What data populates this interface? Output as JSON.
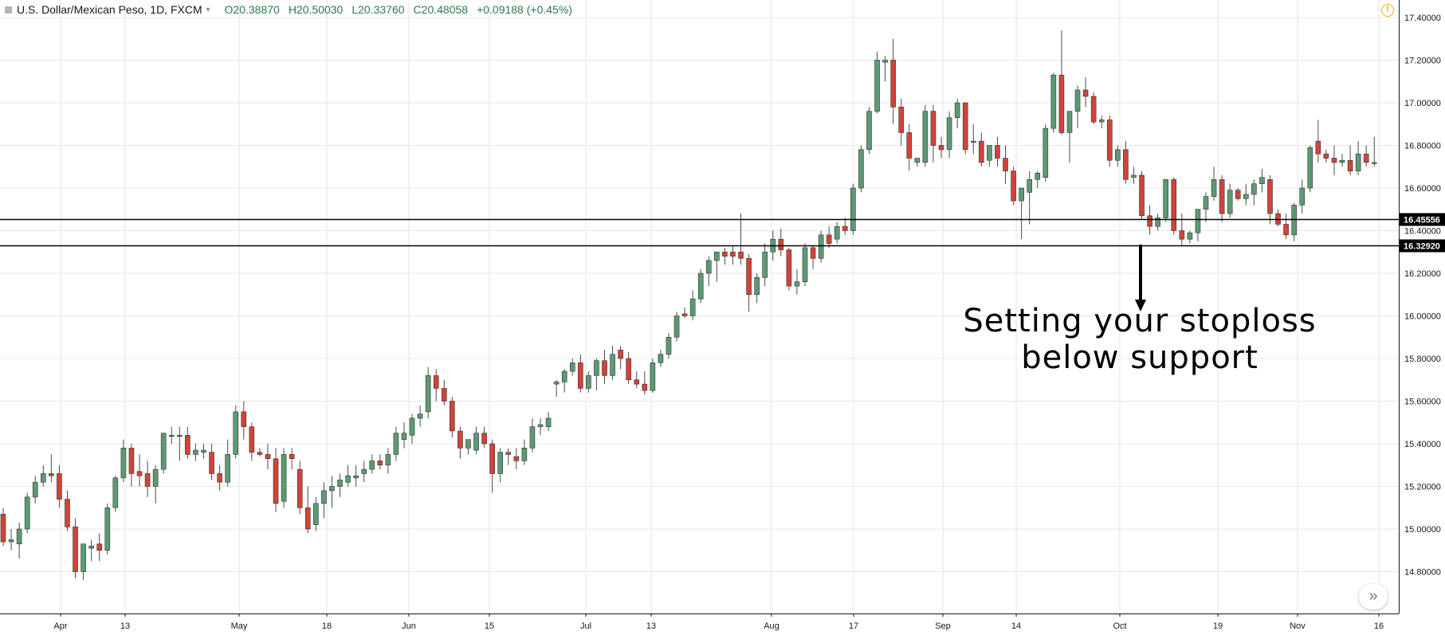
{
  "header": {
    "title": "U.S. Dollar/Mexican Peso, 1D, FXCM",
    "open": "O20.38870",
    "high": "H20.50030",
    "low": "L20.33760",
    "close": "C20.48058",
    "change": "+0.09188 (+0.45%)"
  },
  "annotation": {
    "line1": "Setting your stoploss",
    "line2": "below support"
  },
  "icons": {
    "alert": "alert-icon",
    "scroll": "double-chevron-right-icon"
  },
  "colors": {
    "up": "#5b9b74",
    "down": "#d04437",
    "grid": "#e6e6e6",
    "line": "#000000"
  },
  "chart_data": {
    "type": "candlestick",
    "title": "U.S. Dollar/Mexican Peso, 1D, FXCM",
    "ylim": [
      14.69,
      17.45
    ],
    "y_ticks": [
      "17.40000",
      "17.20000",
      "17.00000",
      "16.80000",
      "16.60000",
      "16.40000",
      "16.20000",
      "16.00000",
      "15.80000",
      "15.60000",
      "15.40000",
      "15.20000",
      "15.00000",
      "14.80000"
    ],
    "x_ticks": [
      "Apr",
      "13",
      "May",
      "18",
      "Jun",
      "15",
      "Jul",
      "13",
      "Aug",
      "17",
      "Sep",
      "14",
      "Oct",
      "19",
      "Nov",
      "16"
    ],
    "horizontal_lines": [
      {
        "value": 16.45556,
        "label": "16.45556"
      },
      {
        "value": 16.3292,
        "label": "16.32920"
      }
    ],
    "grid": true,
    "candles": [
      [
        15.07,
        15.1,
        14.92,
        14.94
      ],
      [
        14.94,
        15.0,
        14.9,
        14.95
      ],
      [
        14.93,
        15.03,
        14.86,
        15.0
      ],
      [
        15.0,
        15.17,
        14.98,
        15.15
      ],
      [
        15.15,
        15.25,
        15.12,
        15.22
      ],
      [
        15.22,
        15.3,
        15.2,
        15.26
      ],
      [
        15.26,
        15.35,
        15.22,
        15.25
      ],
      [
        15.26,
        15.3,
        15.1,
        15.14
      ],
      [
        15.14,
        15.18,
        14.99,
        15.01
      ],
      [
        15.01,
        15.05,
        14.77,
        14.8
      ],
      [
        14.8,
        14.93,
        14.76,
        14.93
      ],
      [
        14.91,
        14.95,
        14.85,
        14.92
      ],
      [
        14.93,
        14.98,
        14.85,
        14.9
      ],
      [
        14.9,
        15.12,
        14.88,
        15.1
      ],
      [
        15.1,
        15.25,
        15.08,
        15.24
      ],
      [
        15.24,
        15.42,
        15.22,
        15.38
      ],
      [
        15.38,
        15.4,
        15.2,
        15.26
      ],
      [
        15.27,
        15.35,
        15.2,
        15.25
      ],
      [
        15.26,
        15.32,
        15.15,
        15.2
      ],
      [
        15.2,
        15.3,
        15.12,
        15.28
      ],
      [
        15.28,
        15.45,
        15.26,
        15.45
      ],
      [
        15.44,
        15.48,
        15.4,
        15.44
      ],
      [
        15.44,
        15.48,
        15.32,
        15.44
      ],
      [
        15.44,
        15.48,
        15.33,
        15.35
      ],
      [
        15.35,
        15.4,
        15.32,
        15.37
      ],
      [
        15.36,
        15.4,
        15.33,
        15.37
      ],
      [
        15.36,
        15.4,
        15.23,
        15.26
      ],
      [
        15.26,
        15.3,
        15.18,
        15.22
      ],
      [
        15.22,
        15.42,
        15.2,
        15.35
      ],
      [
        15.35,
        15.58,
        15.33,
        15.55
      ],
      [
        15.55,
        15.6,
        15.42,
        15.48
      ],
      [
        15.48,
        15.5,
        15.32,
        15.36
      ],
      [
        15.36,
        15.38,
        15.34,
        15.35
      ],
      [
        15.35,
        15.4,
        15.28,
        15.33
      ],
      [
        15.33,
        15.38,
        15.08,
        15.12
      ],
      [
        15.13,
        15.38,
        15.1,
        15.35
      ],
      [
        15.35,
        15.38,
        15.28,
        15.33
      ],
      [
        15.28,
        15.32,
        15.07,
        15.1
      ],
      [
        15.1,
        15.2,
        14.98,
        15.0
      ],
      [
        15.02,
        15.15,
        14.99,
        15.12
      ],
      [
        15.12,
        15.22,
        15.05,
        15.18
      ],
      [
        15.18,
        15.25,
        15.1,
        15.2
      ],
      [
        15.2,
        15.26,
        15.15,
        15.23
      ],
      [
        15.22,
        15.3,
        15.2,
        15.25
      ],
      [
        15.24,
        15.3,
        15.2,
        15.25
      ],
      [
        15.26,
        15.32,
        15.22,
        15.28
      ],
      [
        15.28,
        15.35,
        15.26,
        15.32
      ],
      [
        15.32,
        15.35,
        15.28,
        15.3
      ],
      [
        15.3,
        15.38,
        15.26,
        15.35
      ],
      [
        15.35,
        15.48,
        15.32,
        15.45
      ],
      [
        15.42,
        15.5,
        15.38,
        15.45
      ],
      [
        15.44,
        15.54,
        15.4,
        15.52
      ],
      [
        15.52,
        15.58,
        15.48,
        15.54
      ],
      [
        15.55,
        15.76,
        15.52,
        15.72
      ],
      [
        15.72,
        15.75,
        15.6,
        15.66
      ],
      [
        15.66,
        15.7,
        15.58,
        15.6
      ],
      [
        15.6,
        15.62,
        15.43,
        15.46
      ],
      [
        15.46,
        15.48,
        15.33,
        15.38
      ],
      [
        15.38,
        15.42,
        15.35,
        15.42
      ],
      [
        15.37,
        15.48,
        15.35,
        15.45
      ],
      [
        15.45,
        15.48,
        15.38,
        15.4
      ],
      [
        15.4,
        15.42,
        15.17,
        15.26
      ],
      [
        15.26,
        15.38,
        15.22,
        15.36
      ],
      [
        15.36,
        15.38,
        15.3,
        15.35
      ],
      [
        15.34,
        15.38,
        15.28,
        15.32
      ],
      [
        15.32,
        15.42,
        15.3,
        15.38
      ],
      [
        15.38,
        15.52,
        15.36,
        15.48
      ],
      [
        15.48,
        15.52,
        15.44,
        15.49
      ],
      [
        15.48,
        15.55,
        15.46,
        15.52
      ],
      [
        15.68,
        15.7,
        15.62,
        15.69
      ],
      [
        15.69,
        15.75,
        15.64,
        15.74
      ],
      [
        15.74,
        15.8,
        15.72,
        15.78
      ],
      [
        15.78,
        15.82,
        15.64,
        15.66
      ],
      [
        15.66,
        15.74,
        15.64,
        15.72
      ],
      [
        15.72,
        15.8,
        15.65,
        15.79
      ],
      [
        15.79,
        15.84,
        15.68,
        15.72
      ],
      [
        15.72,
        15.86,
        15.7,
        15.82
      ],
      [
        15.84,
        15.86,
        15.75,
        15.8
      ],
      [
        15.8,
        15.83,
        15.68,
        15.7
      ],
      [
        15.7,
        15.74,
        15.66,
        15.68
      ],
      [
        15.68,
        15.74,
        15.63,
        15.65
      ],
      [
        15.65,
        15.8,
        15.64,
        15.78
      ],
      [
        15.78,
        15.84,
        15.76,
        15.82
      ],
      [
        15.82,
        15.92,
        15.8,
        15.9
      ],
      [
        15.9,
        16.02,
        15.88,
        16.0
      ],
      [
        16.01,
        16.04,
        15.99,
        16.0
      ],
      [
        16.0,
        16.12,
        15.98,
        16.08
      ],
      [
        16.08,
        16.22,
        16.06,
        16.2
      ],
      [
        16.2,
        16.28,
        16.14,
        16.26
      ],
      [
        16.26,
        16.3,
        16.16,
        16.3
      ],
      [
        16.3,
        16.32,
        16.24,
        16.28
      ],
      [
        16.3,
        16.33,
        16.24,
        16.28
      ],
      [
        16.3,
        16.48,
        16.24,
        16.27
      ],
      [
        16.27,
        16.29,
        16.02,
        16.1
      ],
      [
        16.1,
        16.2,
        16.06,
        16.18
      ],
      [
        16.18,
        16.34,
        16.14,
        16.3
      ],
      [
        16.3,
        16.4,
        16.26,
        16.36
      ],
      [
        16.36,
        16.41,
        16.28,
        16.31
      ],
      [
        16.31,
        16.32,
        16.12,
        16.14
      ],
      [
        16.14,
        16.22,
        16.1,
        16.16
      ],
      [
        16.16,
        16.34,
        16.14,
        16.32
      ],
      [
        16.32,
        16.33,
        16.22,
        16.27
      ],
      [
        16.27,
        16.4,
        16.25,
        16.38
      ],
      [
        16.38,
        16.42,
        16.32,
        16.34
      ],
      [
        16.36,
        16.44,
        16.34,
        16.42
      ],
      [
        16.42,
        16.46,
        16.38,
        16.4
      ],
      [
        16.4,
        16.62,
        16.38,
        16.6
      ],
      [
        16.6,
        16.8,
        16.58,
        16.78
      ],
      [
        16.78,
        16.98,
        16.76,
        16.96
      ],
      [
        16.96,
        17.24,
        16.95,
        17.2
      ],
      [
        17.19,
        17.22,
        17.1,
        17.2
      ],
      [
        17.2,
        17.3,
        16.9,
        16.98
      ],
      [
        16.98,
        17.02,
        16.8,
        16.86
      ],
      [
        16.86,
        16.9,
        16.68,
        16.74
      ],
      [
        16.72,
        16.74,
        16.7,
        16.74
      ],
      [
        16.72,
        16.99,
        16.7,
        16.96
      ],
      [
        16.96,
        16.99,
        16.72,
        16.8
      ],
      [
        16.8,
        16.84,
        16.74,
        16.78
      ],
      [
        16.78,
        16.96,
        16.74,
        16.93
      ],
      [
        16.93,
        17.02,
        16.88,
        17.0
      ],
      [
        17.0,
        17.0,
        16.76,
        16.78
      ],
      [
        16.82,
        16.9,
        16.76,
        16.82
      ],
      [
        16.82,
        16.86,
        16.7,
        16.72
      ],
      [
        16.73,
        16.8,
        16.7,
        16.8
      ],
      [
        16.8,
        16.84,
        16.7,
        16.74
      ],
      [
        16.74,
        16.8,
        16.62,
        16.68
      ],
      [
        16.68,
        16.7,
        16.52,
        16.54
      ],
      [
        16.54,
        16.6,
        16.36,
        16.6
      ],
      [
        16.58,
        16.68,
        16.43,
        16.64
      ],
      [
        16.64,
        16.68,
        16.6,
        16.67
      ],
      [
        16.65,
        16.9,
        16.63,
        16.88
      ],
      [
        16.88,
        17.14,
        16.86,
        17.13
      ],
      [
        17.13,
        17.34,
        16.85,
        16.86
      ],
      [
        16.86,
        16.95,
        16.72,
        16.96
      ],
      [
        16.96,
        17.08,
        16.88,
        17.06
      ],
      [
        17.06,
        17.12,
        16.98,
        17.03
      ],
      [
        17.03,
        17.05,
        16.9,
        16.91
      ],
      [
        16.91,
        16.94,
        16.88,
        16.92
      ],
      [
        16.92,
        16.94,
        16.7,
        16.73
      ],
      [
        16.73,
        16.8,
        16.7,
        16.78
      ],
      [
        16.78,
        16.82,
        16.62,
        16.64
      ],
      [
        16.65,
        16.7,
        16.62,
        16.66
      ],
      [
        16.66,
        16.68,
        16.45,
        16.47
      ],
      [
        16.47,
        16.52,
        16.38,
        16.42
      ],
      [
        16.42,
        16.48,
        16.4,
        16.46
      ],
      [
        16.46,
        16.64,
        16.44,
        16.64
      ],
      [
        16.64,
        16.65,
        16.38,
        16.4
      ],
      [
        16.4,
        16.48,
        16.33,
        16.36
      ],
      [
        16.36,
        16.4,
        16.34,
        16.39
      ],
      [
        16.39,
        16.5,
        16.35,
        16.5
      ],
      [
        16.5,
        16.58,
        16.44,
        16.56
      ],
      [
        16.56,
        16.7,
        16.54,
        16.64
      ],
      [
        16.64,
        16.66,
        16.44,
        16.48
      ],
      [
        16.48,
        16.62,
        16.46,
        16.59
      ],
      [
        16.59,
        16.6,
        16.54,
        16.55
      ],
      [
        16.55,
        16.62,
        16.52,
        16.57
      ],
      [
        16.57,
        16.64,
        16.52,
        16.62
      ],
      [
        16.62,
        16.69,
        16.58,
        16.65
      ],
      [
        16.64,
        16.66,
        16.43,
        16.48
      ],
      [
        16.48,
        16.5,
        16.42,
        16.43
      ],
      [
        16.43,
        16.48,
        16.36,
        16.38
      ],
      [
        16.38,
        16.53,
        16.35,
        16.52
      ],
      [
        16.52,
        16.64,
        16.48,
        16.6
      ],
      [
        16.6,
        16.8,
        16.58,
        16.79
      ],
      [
        16.82,
        16.92,
        16.72,
        16.76
      ],
      [
        16.76,
        16.78,
        16.72,
        16.74
      ],
      [
        16.74,
        16.8,
        16.66,
        16.72
      ],
      [
        16.72,
        16.76,
        16.7,
        16.73
      ],
      [
        16.73,
        16.8,
        16.66,
        16.68
      ],
      [
        16.68,
        16.82,
        16.66,
        16.76
      ],
      [
        16.76,
        16.8,
        16.7,
        16.72
      ],
      [
        16.72,
        16.84,
        16.7,
        16.72
      ]
    ]
  }
}
